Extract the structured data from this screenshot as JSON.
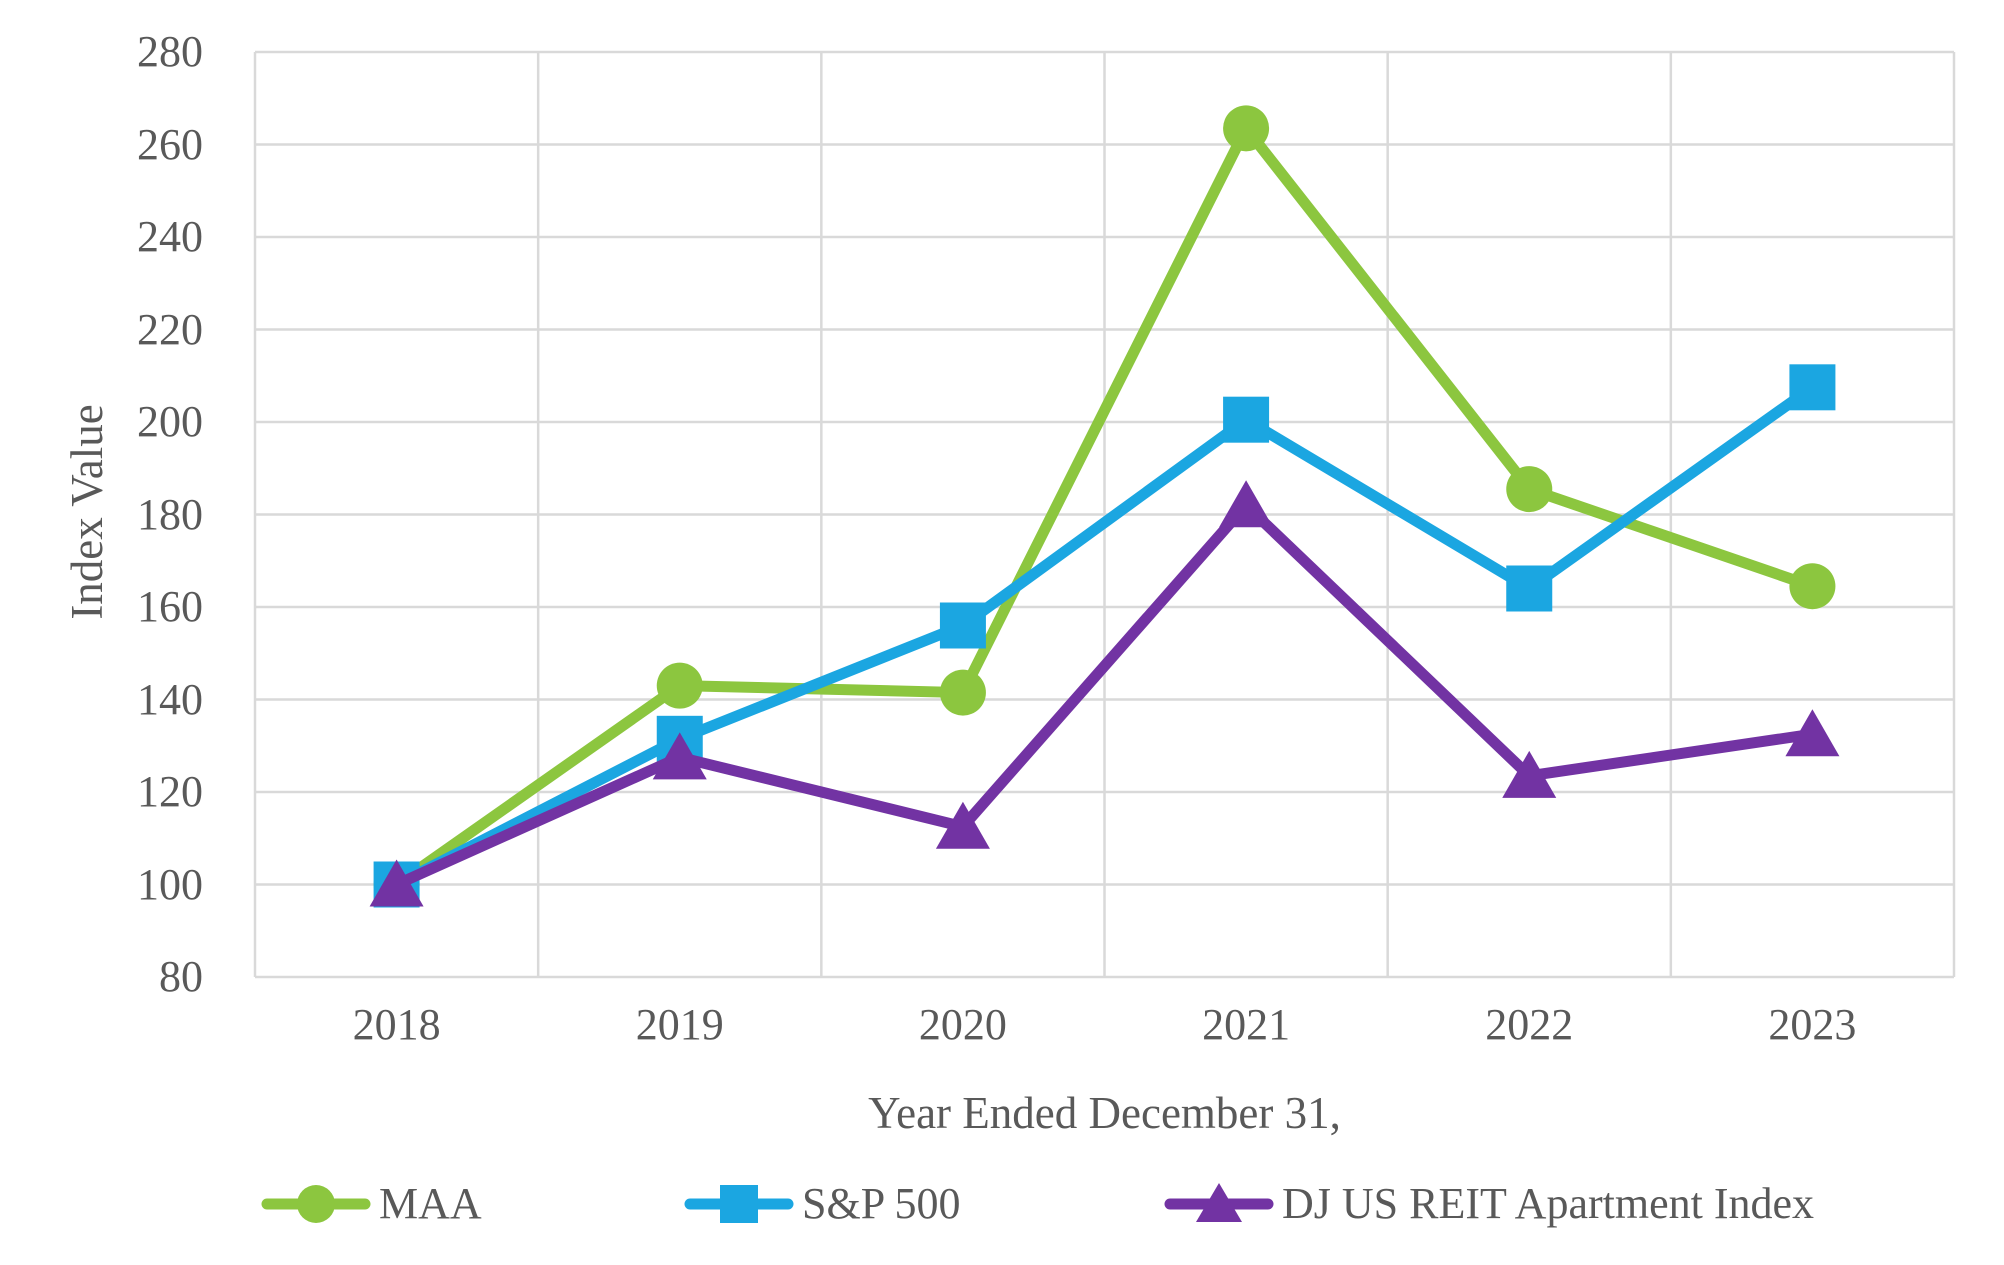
{
  "chart_data": {
    "type": "line",
    "title": "",
    "xlabel": "Year Ended December 31,",
    "ylabel": "Index Value",
    "categories": [
      "2018",
      "2019",
      "2020",
      "2021",
      "2022",
      "2023"
    ],
    "ylim": [
      80,
      280
    ],
    "y_ticks": [
      280,
      260,
      240,
      220,
      200,
      180,
      160,
      140,
      120,
      100,
      80
    ],
    "grid": true,
    "grid_color": "#D9D9D9",
    "text_color": "#595959",
    "background_color": "#FFFFFF",
    "legend_position": "bottom",
    "series": [
      {
        "name": "MAA",
        "marker": "circle",
        "color": "#8CC63F",
        "values": [
          100,
          143,
          141.5,
          263.5,
          185.5,
          164.5
        ]
      },
      {
        "name": "S&P 500",
        "marker": "square",
        "color": "#1BA6E1",
        "values": [
          100,
          131.5,
          156,
          200.5,
          164,
          207.5
        ]
      },
      {
        "name": "DJ US REIT Apartment Index",
        "marker": "triangle",
        "color": "#7233A3",
        "values": [
          100,
          127.5,
          112.5,
          182,
          123.5,
          132.5
        ]
      }
    ]
  }
}
